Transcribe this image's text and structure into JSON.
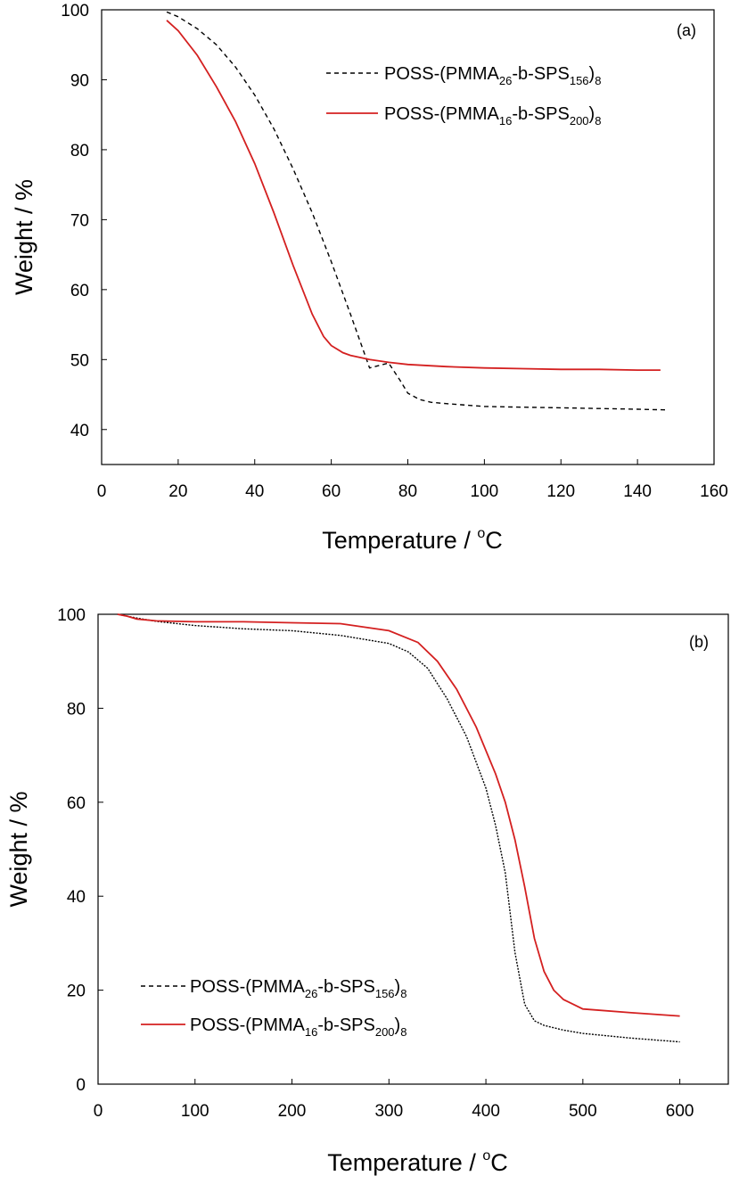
{
  "chart_data": [
    {
      "type": "line",
      "panel_label": "(a)",
      "xlabel": "Temperature / ",
      "xlabel_unit": "C",
      "xlabel_unit_sup": "o",
      "ylabel": "Weight / %",
      "xlim": [
        0,
        160
      ],
      "ylim": [
        35,
        100
      ],
      "xticks": [
        0,
        20,
        40,
        60,
        80,
        100,
        120,
        140,
        160
      ],
      "yticks": [
        40,
        50,
        60,
        70,
        80,
        90,
        100
      ],
      "grid": false,
      "legend_position": "top-right",
      "series": [
        {
          "name": "POSS-(PMMA26-b-SPS156)8",
          "label_parts": {
            "main": "POSS-(PMMA",
            "sub1": "26",
            "mid": "-b-SPS",
            "sub2": "156",
            "close": ")",
            "sub3": "8"
          },
          "color": "#000000",
          "style": "dashed",
          "x": [
            17,
            20,
            25,
            30,
            35,
            40,
            45,
            50,
            55,
            60,
            65,
            70,
            75,
            78,
            80,
            83,
            86,
            90,
            95,
            100,
            110,
            120,
            130,
            140,
            148
          ],
          "y": [
            99.7,
            99.0,
            97.3,
            95.0,
            91.8,
            87.8,
            83.0,
            77.3,
            71.0,
            64.0,
            56.5,
            48.8,
            49.5,
            47.0,
            45.2,
            44.3,
            43.9,
            43.7,
            43.5,
            43.3,
            43.2,
            43.1,
            43.0,
            42.9,
            42.8
          ]
        },
        {
          "name": "POSS-(PMMA16-b-SPS200)8",
          "label_parts": {
            "main": "POSS-(PMMA",
            "sub1": "16",
            "mid": "-b-SPS",
            "sub2": "200",
            "close": ")",
            "sub3": "8"
          },
          "color": "#d42020",
          "style": "solid",
          "x": [
            17,
            20,
            25,
            30,
            35,
            40,
            45,
            50,
            55,
            58,
            60,
            63,
            65,
            70,
            75,
            80,
            90,
            100,
            110,
            120,
            130,
            140,
            146
          ],
          "y": [
            98.5,
            97.0,
            93.5,
            89.0,
            84.0,
            78.0,
            71.0,
            63.5,
            56.5,
            53.3,
            52.0,
            51.0,
            50.6,
            50.0,
            49.6,
            49.3,
            49.0,
            48.8,
            48.7,
            48.6,
            48.6,
            48.5,
            48.5
          ]
        }
      ]
    },
    {
      "type": "line",
      "panel_label": "(b)",
      "xlabel": "Temperature / ",
      "xlabel_unit": "C",
      "xlabel_unit_sup": "o",
      "ylabel": "Weight / %",
      "xlim": [
        0,
        650
      ],
      "ylim": [
        0,
        100
      ],
      "xticks": [
        0,
        100,
        200,
        300,
        400,
        500,
        600
      ],
      "yticks": [
        0,
        20,
        40,
        60,
        80,
        100
      ],
      "grid": false,
      "legend_position": "bottom-left",
      "series": [
        {
          "name": "POSS-(PMMA26-b-SPS156)8",
          "label_parts": {
            "main": "POSS-(PMMA",
            "sub1": "26",
            "mid": "-b-SPS",
            "sub2": "156",
            "close": ")",
            "sub3": "8"
          },
          "color": "#000000",
          "style": "dotted",
          "x": [
            20,
            30,
            40,
            60,
            100,
            150,
            200,
            250,
            300,
            320,
            340,
            360,
            380,
            400,
            410,
            420,
            430,
            440,
            450,
            460,
            480,
            500,
            550,
            600
          ],
          "y": [
            100,
            99.6,
            99.2,
            98.5,
            97.6,
            96.9,
            96.5,
            95.5,
            93.8,
            92.0,
            88.5,
            82.0,
            74.0,
            63.0,
            55.0,
            45.0,
            28.0,
            17.0,
            13.5,
            12.5,
            11.5,
            10.8,
            9.8,
            9.0
          ]
        },
        {
          "name": "POSS-(PMMA16-b-SPS200)8",
          "label_parts": {
            "main": "POSS-(PMMA",
            "sub1": "16",
            "mid": "-b-SPS",
            "sub2": "200",
            "close": ")",
            "sub3": "8"
          },
          "color": "#d42020",
          "style": "solid",
          "x": [
            20,
            30,
            40,
            60,
            100,
            150,
            200,
            250,
            300,
            330,
            350,
            370,
            390,
            410,
            420,
            430,
            440,
            450,
            460,
            470,
            480,
            500,
            550,
            600
          ],
          "y": [
            100,
            99.6,
            99.0,
            98.6,
            98.4,
            98.4,
            98.2,
            98.0,
            96.5,
            94.0,
            90.0,
            84.0,
            76.0,
            66.0,
            60.0,
            52.0,
            42.0,
            31.0,
            24.0,
            20.0,
            18.0,
            16.0,
            15.2,
            14.5
          ]
        }
      ]
    }
  ]
}
